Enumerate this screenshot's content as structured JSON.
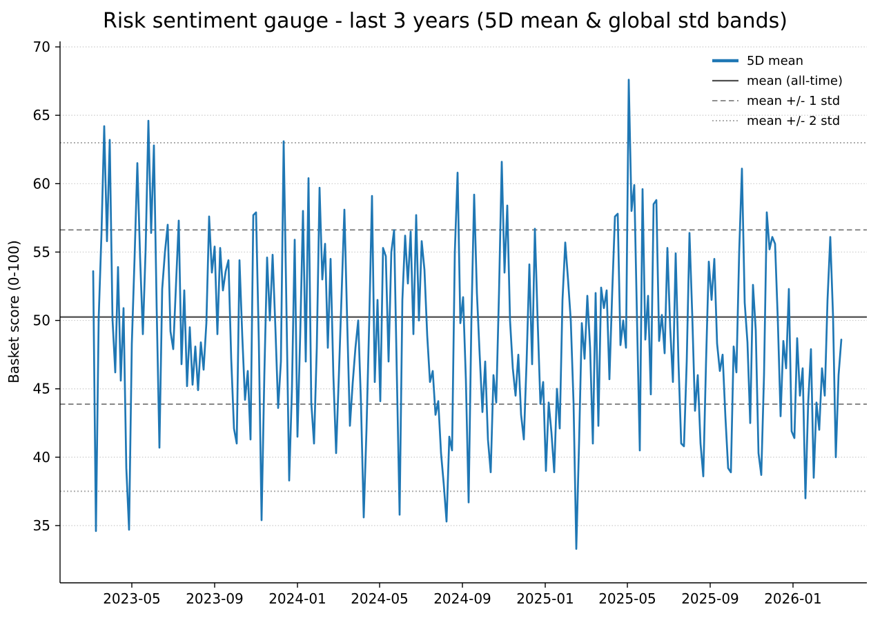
{
  "figure": {
    "title": "Risk sentiment gauge - last 3 years (5D mean & global std bands)"
  },
  "chart_data": {
    "type": "line",
    "title": "Risk sentiment gauge - last 3 years (5D mean & global std bands)",
    "xlabel": "",
    "ylabel": "Basket score (0-100)",
    "xtick_labels": [
      "2023-05",
      "2023-09",
      "2024-01",
      "2024-05",
      "2024-09",
      "2025-01",
      "2025-05",
      "2025-09",
      "2026-01"
    ],
    "ytick_labels": [
      "35",
      "40",
      "45",
      "50",
      "55",
      "60",
      "65",
      "70"
    ],
    "yticks": [
      35,
      40,
      45,
      50,
      55,
      60,
      65,
      70
    ],
    "ylim": [
      30.8,
      70.4
    ],
    "x_range": [
      "2023-03-05",
      "2026-02-22"
    ],
    "grid": "horizontal dotted lines at y ticks",
    "legend_position": "upper right, no frame",
    "stats": {
      "mean_all_time": 50.25,
      "std_all_time": 6.37
    },
    "ref_lines": {
      "mean": 50.25,
      "plus1": 56.62,
      "minus1": 43.88,
      "plus2": 62.99,
      "minus2": 37.51
    },
    "legend": [
      {
        "label": "5D mean",
        "style": "solid thick",
        "color": "#1f77b4"
      },
      {
        "label": "mean (all-time)",
        "style": "solid",
        "color": "#4d4d4d"
      },
      {
        "label": "mean +/- 1 std",
        "style": "dashed",
        "color": "#7f7f7f"
      },
      {
        "label": "mean +/- 2 std",
        "style": "dotted",
        "color": "#a8a8a8"
      }
    ],
    "colors": {
      "series": "#1f77b4",
      "mean_line": "#4d4d4d",
      "std1_line": "#7f7f7f",
      "std2_line": "#a8a8a8",
      "grid_line": "#c9c9c9",
      "text": "#000000"
    },
    "series": [
      {
        "name": "5D mean",
        "start_date": "2023-03-05",
        "step_days": 4,
        "values": [
          53.6,
          34.6,
          50.2,
          56.3,
          64.2,
          55.8,
          63.2,
          50.1,
          46.2,
          53.9,
          45.6,
          50.9,
          39.2,
          34.7,
          48.3,
          54.6,
          61.5,
          54.6,
          49.0,
          55.2,
          64.6,
          56.4,
          62.8,
          50.9,
          40.7,
          52.3,
          55.0,
          57.0,
          49.2,
          47.9,
          52.6,
          57.3,
          46.8,
          52.2,
          45.2,
          49.5,
          45.3,
          48.1,
          44.9,
          48.4,
          46.4,
          49.8,
          57.6,
          53.5,
          55.4,
          49.0,
          55.3,
          52.2,
          53.6,
          54.4,
          47.2,
          42.1,
          41.0,
          54.4,
          48.9,
          44.2,
          46.3,
          41.3,
          57.7,
          57.9,
          48.5,
          35.4,
          46.0,
          54.6,
          50.0,
          54.8,
          49.5,
          43.6,
          47.0,
          63.1,
          51.0,
          38.3,
          45.0,
          55.9,
          41.5,
          49.0,
          58.0,
          47.0,
          60.4,
          44.0,
          41.0,
          48.0,
          59.7,
          53.0,
          55.6,
          48.0,
          54.5,
          46.0,
          40.3,
          46.0,
          52.0,
          58.1,
          50.0,
          42.3,
          45.4,
          48.0,
          50.0,
          44.0,
          35.6,
          42.0,
          50.0,
          59.1,
          45.5,
          51.5,
          44.1,
          55.3,
          54.7,
          47.0,
          55.0,
          56.6,
          46.0,
          35.8,
          51.5,
          56.2,
          52.7,
          56.5,
          49.0,
          57.7,
          50.0,
          55.8,
          53.7,
          48.9,
          45.5,
          46.3,
          43.1,
          44.1,
          40.3,
          38.0,
          35.3,
          41.5,
          40.5,
          55.0,
          60.8,
          49.8,
          51.7,
          45.7,
          36.7,
          50.0,
          59.2,
          52.0,
          47.5,
          43.3,
          47.0,
          41.3,
          38.9,
          46.0,
          44.0,
          52.0,
          61.6,
          53.5,
          58.4,
          50.0,
          46.5,
          44.5,
          47.5,
          43.1,
          41.3,
          47.0,
          54.1,
          46.8,
          56.7,
          50.0,
          43.9,
          45.5,
          39.0,
          44.0,
          41.8,
          38.9,
          45.0,
          42.1,
          51.5,
          55.7,
          53.0,
          50.0,
          44.0,
          33.3,
          41.0,
          49.8,
          47.2,
          51.8,
          48.0,
          41.0,
          52.0,
          42.3,
          52.4,
          50.9,
          52.2,
          45.7,
          52.0,
          57.6,
          57.8,
          48.2,
          50.0,
          48.0,
          67.6,
          58.0,
          59.9,
          50.0,
          40.5,
          59.6,
          48.6,
          51.8,
          44.6,
          58.5,
          58.8,
          48.5,
          50.4,
          47.6,
          55.3,
          49.5,
          45.5,
          54.9,
          47.0,
          41.0,
          40.8,
          47.0,
          56.4,
          50.4,
          43.4,
          46.0,
          41.0,
          38.6,
          47.0,
          54.3,
          51.5,
          54.5,
          48.3,
          46.3,
          47.5,
          43.0,
          39.2,
          38.9,
          48.1,
          46.2,
          55.0,
          61.1,
          51.3,
          48.4,
          42.5,
          52.6,
          49.3,
          40.3,
          38.7,
          46.0,
          57.9,
          55.2,
          56.1,
          55.6,
          50.0,
          43.0,
          48.5,
          46.5,
          52.3,
          41.9,
          41.4,
          48.7,
          44.5,
          46.5,
          37.0,
          44.0,
          47.9,
          38.5,
          44.0,
          42.0,
          46.5,
          44.5,
          51.5,
          56.1,
          50.3,
          40.0,
          46.0,
          48.6
        ]
      }
    ]
  }
}
